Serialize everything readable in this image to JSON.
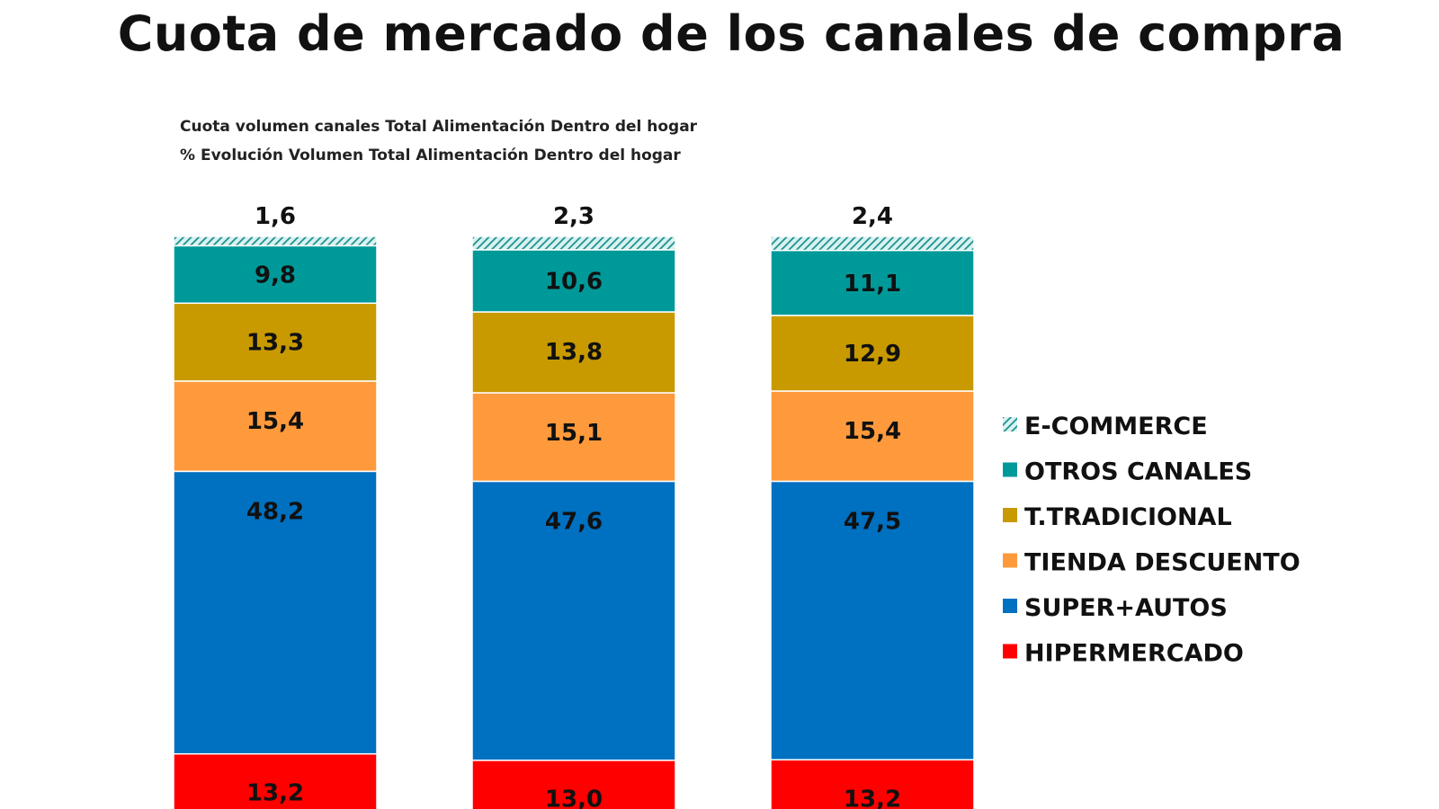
{
  "title": "Cuota de mercado de los canales de compra",
  "subtitles": [
    "Cuota volumen canales Total Alimentación Dentro del hogar",
    "% Evolución Volumen Total Alimentación Dentro del hogar"
  ],
  "chart_data": {
    "type": "bar",
    "stacked": true,
    "title": "Cuota de mercado de los canales de compra",
    "subtitle": "Cuota volumen canales Total Alimentación Dentro del hogar / % Evolución Volumen Total Alimentación Dentro del hogar",
    "categories": [
      "",
      "",
      ""
    ],
    "xlabel": "",
    "ylabel": "",
    "ylim": [
      0,
      100
    ],
    "grid": false,
    "legend_position": "right",
    "series": [
      {
        "name": "HIPERMERCADO",
        "color": "#ff0000",
        "pattern": "solid",
        "values": [
          13.2,
          13.0,
          13.2
        ],
        "labels": [
          "13,2",
          "13,0",
          "13,2"
        ]
      },
      {
        "name": "SUPER+AUTOS",
        "color": "#0070c0",
        "pattern": "solid",
        "values": [
          48.2,
          47.6,
          47.5
        ],
        "labels": [
          "48,2",
          "47,6",
          "47,5"
        ]
      },
      {
        "name": "TIENDA DESCUENTO",
        "color": "#ff9a3c",
        "pattern": "solid",
        "values": [
          15.4,
          15.1,
          15.4
        ],
        "labels": [
          "15,4",
          "15,1",
          "15,4"
        ]
      },
      {
        "name": "T.TRADICIONAL",
        "color": "#c89a00",
        "pattern": "solid",
        "values": [
          13.3,
          13.8,
          12.9
        ],
        "labels": [
          "13,3",
          "13,8",
          "12,9"
        ]
      },
      {
        "name": "OTROS CANALES",
        "color": "#009999",
        "pattern": "solid",
        "values": [
          9.8,
          10.6,
          11.1
        ],
        "labels": [
          "9,8",
          "10,6",
          "11,1"
        ]
      },
      {
        "name": "E-COMMERCE",
        "color": "#1a8f8f",
        "pattern": "hatched",
        "values": [
          1.6,
          2.3,
          2.4
        ],
        "labels": [
          "1,6",
          "2,3",
          "2,4"
        ]
      }
    ],
    "legend_order": [
      "E-COMMERCE",
      "OTROS CANALES",
      "T.TRADICIONAL",
      "TIENDA DESCUENTO",
      "SUPER+AUTOS",
      "HIPERMERCADO"
    ]
  }
}
